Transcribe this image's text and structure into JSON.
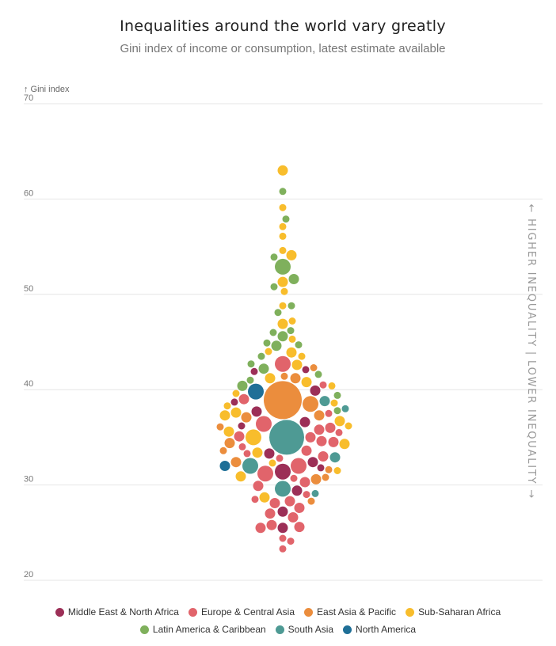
{
  "header": {
    "title": "Inequalities around the world vary greatly",
    "subtitle": "Gini index of income or consumption, latest estimate available"
  },
  "side_labels": {
    "higher": "← HIGHER INEQUALITY",
    "separator": "|",
    "lower": "LOWER INEQUALITY →"
  },
  "colors": {
    "mena": "#9c2f57",
    "eca": "#e1646b",
    "eap": "#eb8d3d",
    "ssa": "#f8bd2c",
    "lac": "#7fb05c",
    "sas": "#4e9a94",
    "na": "#1f6f97"
  },
  "chart_data": {
    "type": "scatter",
    "title": "Inequalities around the world vary greatly",
    "subtitle": "Gini index of income or consumption, latest estimate available",
    "ylabel": "↑ Gini index",
    "ylim": [
      20,
      70
    ],
    "yticks": [
      20,
      30,
      40,
      50,
      60,
      70
    ],
    "grid": true,
    "size_encoding": "bubble area scales with population",
    "series": [
      {
        "name": "Middle East & North Africa",
        "key": "mena",
        "points": [
          {
            "y": 37.7,
            "s": 2
          },
          {
            "y": 36.6,
            "s": 2
          },
          {
            "y": 39.9,
            "s": 2
          },
          {
            "y": 42.1,
            "s": 1
          },
          {
            "y": 41.9,
            "s": 1
          },
          {
            "y": 38.7,
            "s": 1
          },
          {
            "y": 33.3,
            "s": 2
          },
          {
            "y": 32.4,
            "s": 2
          },
          {
            "y": 31.4,
            "s": 3
          },
          {
            "y": 29.4,
            "s": 2
          },
          {
            "y": 27.2,
            "s": 2
          },
          {
            "y": 25.5,
            "s": 2
          },
          {
            "y": 31.8,
            "s": 1
          },
          {
            "y": 36.2,
            "s": 1
          }
        ]
      },
      {
        "name": "Europe & Central Asia",
        "key": "eca",
        "points": [
          {
            "y": 42.7,
            "s": 3
          },
          {
            "y": 39.0,
            "s": 2
          },
          {
            "y": 36.4,
            "s": 3
          },
          {
            "y": 35.0,
            "s": 2
          },
          {
            "y": 34.6,
            "s": 2
          },
          {
            "y": 35.8,
            "s": 2
          },
          {
            "y": 35.1,
            "s": 2
          },
          {
            "y": 33.6,
            "s": 2
          },
          {
            "y": 33.0,
            "s": 2
          },
          {
            "y": 32.0,
            "s": 3
          },
          {
            "y": 31.2,
            "s": 3
          },
          {
            "y": 30.3,
            "s": 2
          },
          {
            "y": 29.9,
            "s": 2
          },
          {
            "y": 28.3,
            "s": 2
          },
          {
            "y": 28.1,
            "s": 2
          },
          {
            "y": 27.6,
            "s": 2
          },
          {
            "y": 27.0,
            "s": 2
          },
          {
            "y": 26.6,
            "s": 2
          },
          {
            "y": 25.8,
            "s": 2
          },
          {
            "y": 25.6,
            "s": 2
          },
          {
            "y": 25.5,
            "s": 2
          },
          {
            "y": 24.4,
            "s": 1
          },
          {
            "y": 24.1,
            "s": 1
          },
          {
            "y": 23.3,
            "s": 1
          },
          {
            "y": 30.7,
            "s": 1
          },
          {
            "y": 29.0,
            "s": 1
          },
          {
            "y": 28.5,
            "s": 1
          },
          {
            "y": 32.8,
            "s": 1
          },
          {
            "y": 33.3,
            "s": 1
          },
          {
            "y": 34.0,
            "s": 1
          },
          {
            "y": 37.5,
            "s": 1
          },
          {
            "y": 40.5,
            "s": 1
          },
          {
            "y": 36.0,
            "s": 2
          },
          {
            "y": 34.5,
            "s": 2
          },
          {
            "y": 35.5,
            "s": 1
          }
        ]
      },
      {
        "name": "East Asia & Pacific",
        "key": "eap",
        "points": [
          {
            "y": 38.9,
            "s": 5
          },
          {
            "y": 38.5,
            "s": 3
          },
          {
            "y": 37.3,
            "s": 2
          },
          {
            "y": 37.1,
            "s": 2
          },
          {
            "y": 34.4,
            "s": 2
          },
          {
            "y": 32.4,
            "s": 2
          },
          {
            "y": 30.6,
            "s": 2
          },
          {
            "y": 41.2,
            "s": 2
          },
          {
            "y": 41.4,
            "s": 1
          },
          {
            "y": 42.3,
            "s": 1
          },
          {
            "y": 36.1,
            "s": 1
          },
          {
            "y": 33.6,
            "s": 1
          },
          {
            "y": 31.6,
            "s": 1
          },
          {
            "y": 28.3,
            "s": 1
          },
          {
            "y": 30.8,
            "s": 1
          }
        ]
      },
      {
        "name": "Sub-Saharan Africa",
        "key": "ssa",
        "points": [
          {
            "y": 63.0,
            "s": 2
          },
          {
            "y": 59.1,
            "s": 1
          },
          {
            "y": 57.1,
            "s": 1
          },
          {
            "y": 56.1,
            "s": 1
          },
          {
            "y": 54.1,
            "s": 2
          },
          {
            "y": 54.6,
            "s": 1
          },
          {
            "y": 51.3,
            "s": 2
          },
          {
            "y": 50.3,
            "s": 1
          },
          {
            "y": 48.8,
            "s": 1
          },
          {
            "y": 47.2,
            "s": 1
          },
          {
            "y": 46.9,
            "s": 2
          },
          {
            "y": 45.3,
            "s": 1
          },
          {
            "y": 44.0,
            "s": 1
          },
          {
            "y": 43.9,
            "s": 2
          },
          {
            "y": 43.5,
            "s": 1
          },
          {
            "y": 42.6,
            "s": 2
          },
          {
            "y": 41.2,
            "s": 2
          },
          {
            "y": 40.8,
            "s": 2
          },
          {
            "y": 39.6,
            "s": 1
          },
          {
            "y": 38.6,
            "s": 1
          },
          {
            "y": 37.6,
            "s": 2
          },
          {
            "y": 35.6,
            "s": 2
          },
          {
            "y": 35.0,
            "s": 3
          },
          {
            "y": 34.3,
            "s": 2
          },
          {
            "y": 33.4,
            "s": 2
          },
          {
            "y": 32.3,
            "s": 1
          },
          {
            "y": 31.5,
            "s": 1
          },
          {
            "y": 30.9,
            "s": 2
          },
          {
            "y": 28.7,
            "s": 2
          },
          {
            "y": 36.7,
            "s": 2
          },
          {
            "y": 37.3,
            "s": 2
          },
          {
            "y": 38.3,
            "s": 1
          },
          {
            "y": 36.2,
            "s": 1
          },
          {
            "y": 40.4,
            "s": 1
          }
        ]
      },
      {
        "name": "Latin America & Caribbean",
        "key": "lac",
        "points": [
          {
            "y": 60.8,
            "s": 1
          },
          {
            "y": 57.9,
            "s": 1
          },
          {
            "y": 53.9,
            "s": 1
          },
          {
            "y": 52.9,
            "s": 3
          },
          {
            "y": 51.6,
            "s": 2
          },
          {
            "y": 50.8,
            "s": 1
          },
          {
            "y": 48.8,
            "s": 1
          },
          {
            "y": 48.1,
            "s": 1
          },
          {
            "y": 46.2,
            "s": 1
          },
          {
            "y": 45.6,
            "s": 2
          },
          {
            "y": 44.9,
            "s": 1
          },
          {
            "y": 44.6,
            "s": 2
          },
          {
            "y": 44.7,
            "s": 1
          },
          {
            "y": 43.5,
            "s": 1
          },
          {
            "y": 42.2,
            "s": 2
          },
          {
            "y": 41.6,
            "s": 1
          },
          {
            "y": 40.4,
            "s": 2
          },
          {
            "y": 39.4,
            "s": 1
          },
          {
            "y": 37.8,
            "s": 1
          },
          {
            "y": 46.0,
            "s": 1
          },
          {
            "y": 42.7,
            "s": 1
          },
          {
            "y": 41.0,
            "s": 1
          }
        ]
      },
      {
        "name": "South Asia",
        "key": "sas",
        "points": [
          {
            "y": 35.0,
            "s": 6
          },
          {
            "y": 32.0,
            "s": 3
          },
          {
            "y": 29.6,
            "s": 3
          },
          {
            "y": 38.8,
            "s": 2
          },
          {
            "y": 32.9,
            "s": 2
          },
          {
            "y": 38.0,
            "s": 1
          },
          {
            "y": 29.1,
            "s": 1
          }
        ]
      },
      {
        "name": "North America",
        "key": "na",
        "points": [
          {
            "y": 39.8,
            "s": 3
          },
          {
            "y": 32.0,
            "s": 2
          }
        ]
      }
    ]
  },
  "legend": {
    "row1": [
      {
        "label": "Middle East & North Africa",
        "key": "mena"
      },
      {
        "label": "Europe & Central Asia",
        "key": "eca"
      },
      {
        "label": "East Asia & Pacific",
        "key": "eap"
      },
      {
        "label": "Sub-Saharan Africa",
        "key": "ssa"
      }
    ],
    "row2": [
      {
        "label": "Latin America & Caribbean",
        "key": "lac"
      },
      {
        "label": "South Asia",
        "key": "sas"
      },
      {
        "label": "North America",
        "key": "na"
      }
    ]
  }
}
